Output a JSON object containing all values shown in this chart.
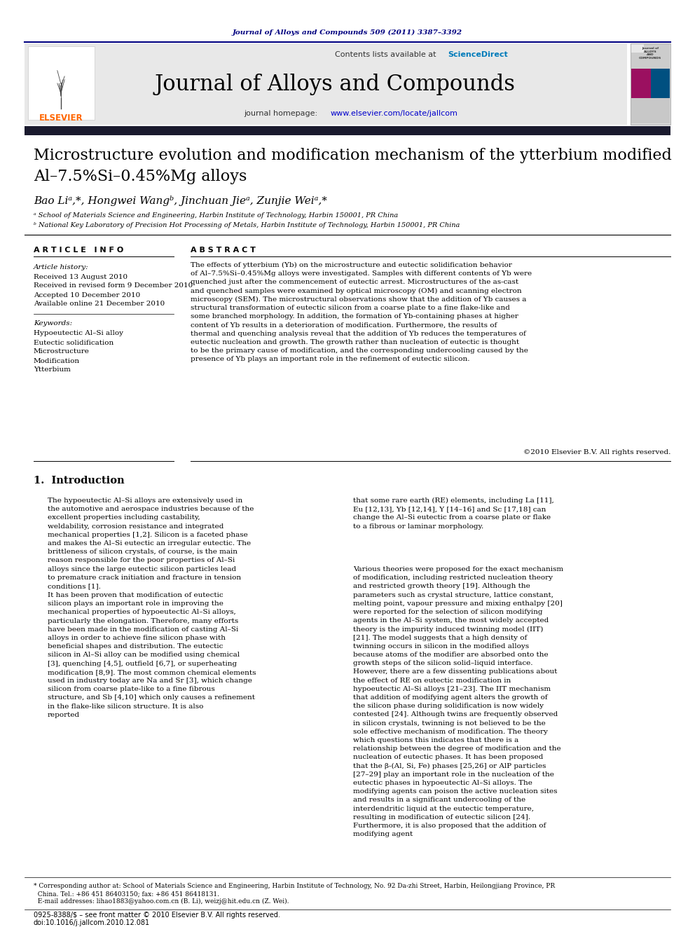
{
  "journal_ref": "Journal of Alloys and Compounds 509 (2011) 3387–3392",
  "journal_name": "Journal of Alloys and Compounds",
  "contents_line": "Contents lists available at ScienceDirect",
  "homepage_line": "journal homepage: www.elsevier.com/locate/jallcom",
  "title_line1": "Microstructure evolution and modification mechanism of the ytterbium modified",
  "title_line2": "Al–7.5%Si–0.45%Mg alloys",
  "authors": "Bao Liᵃ,*, Hongwei Wangᵇ, Jinchuan Jieᵃ, Zunjie Weiᵃ,*",
  "affil_a": "ᵃ School of Materials Science and Engineering, Harbin Institute of Technology, Harbin 150001, PR China",
  "affil_b": "ᵇ National Key Laboratory of Precision Hot Processing of Metals, Harbin Institute of Technology, Harbin 150001, PR China",
  "article_info_title": "A R T I C L E   I N F O",
  "abstract_title": "A B S T R A C T",
  "article_history_label": "Article history:",
  "received": "Received 13 August 2010",
  "received_revised": "Received in revised form 9 December 2010",
  "accepted": "Accepted 10 December 2010",
  "available": "Available online 21 December 2010",
  "keywords_label": "Keywords:",
  "keywords": [
    "Hypoeutectic Al–Si alloy",
    "Eutectic solidification",
    "Microstructure",
    "Modification",
    "Ytterbium"
  ],
  "abstract_text": "The effects of ytterbium (Yb) on the microstructure and eutectic solidification behavior of Al–7.5%Si–0.45%Mg alloys were investigated. Samples with different contents of Yb were quenched just after the commencement of eutectic arrest. Microstructures of the as-cast and quenched samples were examined by optical microscopy (OM) and scanning electron microscopy (SEM). The microstructural observations show that the addition of Yb causes a structural transformation of eutectic silicon from a coarse plate to a fine flake-like and some branched morphology. In addition, the formation of Yb-containing phases at higher content of Yb results in a deterioration of modification. Furthermore, the results of thermal and quenching analysis reveal that the addition of Yb reduces the temperatures of eutectic nucleation and growth. The growth rather than nucleation of eutectic is thought to be the primary cause of modification, and the corresponding undercooling caused by the presence of Yb plays an important role in the refinement of eutectic silicon.",
  "copyright": "©2010 Elsevier B.V. All rights reserved.",
  "section1_title": "1.  Introduction",
  "intro_p1": "The hypoeutectic Al–Si alloys are extensively used in the automotive and aerospace industries because of the excellent properties including castability, weldability, corrosion resistance and integrated mechanical properties [1,2]. Silicon is a faceted phase and makes the Al–Si eutectic an irregular eutectic. The brittleness of silicon crystals, of course, is the main reason responsible for the poor properties of Al–Si alloys since the large eutectic silicon particles lead to premature crack initiation and fracture in tension conditions [1].",
  "intro_p2_left": "It has been proven that modification of eutectic silicon plays an important role in improving the mechanical properties of hypoeutectic Al–Si alloys, particularly the elongation. Therefore, many efforts have been made in the modification of casting Al–Si alloys in order to achieve fine silicon phase with beneficial shapes and distribution. The eutectic silicon in Al–Si alloy can be modified using chemical [3], quenching [4,5], outfield [6,7], or superheating modification [8,9]. The most common chemical elements used in industry today are Na and Sr [3], which change silicon from coarse plate-like to a fine fibrous structure, and Sb [4,10] which only causes a refinement in the flake-like silicon structure. It is also reported",
  "intro_p1_right": "that some rare earth (RE) elements, including La [11], Eu [12,13], Yb [12,14], Y [14–16] and Sc [17,18] can change the Al–Si eutectic from a coarse plate or flake to a fibrous or laminar morphology.",
  "intro_p2_right": "Various theories were proposed for the exact mechanism of modification, including restricted nucleation theory and restricted growth theory [19]. Although the parameters such as crystal structure, lattice constant, melting point, vapour pressure and mixing enthalpy [20] were reported for the selection of silicon modifying agents in the Al–Si system, the most widely accepted theory is the impurity induced twinning model (IIT) [21]. The model suggests that a high density of twinning occurs in silicon in the modified alloys because atoms of the modifier are absorbed onto the growth steps of the silicon solid–liquid interface. However, there are a few dissenting publications about the effect of RE on eutectic modification in hypoeutectic Al–Si alloys [21–23]. The IIT mechanism that addition of modifying agent alters the growth of the silicon phase during solidification is now widely contested [24]. Although twins are frequently observed in silicon crystals, twinning is not believed to be the sole effective mechanism of modification. The theory which questions this indicates that there is a relationship between the degree of modification and the nucleation of eutectic phases. It has been proposed that the β-(Al, Si, Fe) phases [25,26] or AlP particles [27–29] play an important role in the nucleation of the eutectic phases in hypoeutectic Al–Si alloys. The modifying agents can poison the active nucleation sites and results in a significant undercooling of the interdendritic liquid at the eutectic temperature, resulting in modification of eutectic silicon [24]. Furthermore, it is also proposed that the addition of modifying agent",
  "footer_left": "0925-8388/$ – see front matter © 2010 Elsevier B.V. All rights reserved.",
  "footer_doi": "doi:10.1016/j.jallcom.2010.12.081",
  "footnote_line1": "* Corresponding author at: School of Materials Science and Engineering, Harbin Institute of Technology, No. 92 Da-zhi Street, Harbin, Heilongjiang Province, PR",
  "footnote_line2": "  China. Tel.: +86 451 86403150; fax: +86 451 86418131.",
  "footnote_line3": "  E-mail addresses: lihao1883@yahoo.com.cn (B. Li), weizj@hit.edu.cn (Z. Wei).",
  "bg_header_color": "#e8e8e8",
  "dark_bar_color": "#1a1a2e",
  "elsevier_orange": "#ff6600",
  "journal_ref_color": "#000080",
  "science_direct_color": "#007bba",
  "link_color": "#0000cc"
}
